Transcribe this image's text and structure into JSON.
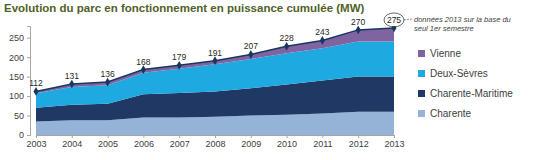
{
  "chart_data": {
    "type": "area",
    "title": "Evolution du parc en fonctionnement en puissance cumulée (MW)",
    "annotation": "données 2013 sur la base du seul 1er semestre",
    "categories": [
      "2003",
      "2004",
      "2005",
      "2006",
      "2007",
      "2008",
      "2009",
      "2010",
      "2011",
      "2012",
      "2013"
    ],
    "series": [
      {
        "name": "Charente",
        "color": "#95b3d7",
        "values": [
          35,
          38,
          38,
          45,
          45,
          47,
          50,
          52,
          55,
          60,
          60
        ]
      },
      {
        "name": "Charente-Maritime",
        "color": "#1f3864",
        "values": [
          35,
          40,
          42,
          60,
          63,
          65,
          70,
          78,
          85,
          90,
          90
        ]
      },
      {
        "name": "Deux-Sèvres",
        "color": "#1fa9e1",
        "values": [
          37,
          45,
          48,
          55,
          62,
          70,
          75,
          80,
          83,
          90,
          90
        ]
      },
      {
        "name": "Vienne",
        "color": "#8064a2",
        "values": [
          5,
          8,
          8,
          8,
          9,
          9,
          12,
          18,
          20,
          30,
          35
        ]
      }
    ],
    "totals": [
      112,
      131,
      136,
      168,
      179,
      191,
      207,
      228,
      243,
      270,
      275
    ],
    "ylim": [
      0,
      280
    ],
    "yticks": [
      0,
      50,
      100,
      150,
      200,
      250
    ],
    "stacked": true,
    "data_labels": true,
    "grid": false,
    "legend": "right"
  }
}
